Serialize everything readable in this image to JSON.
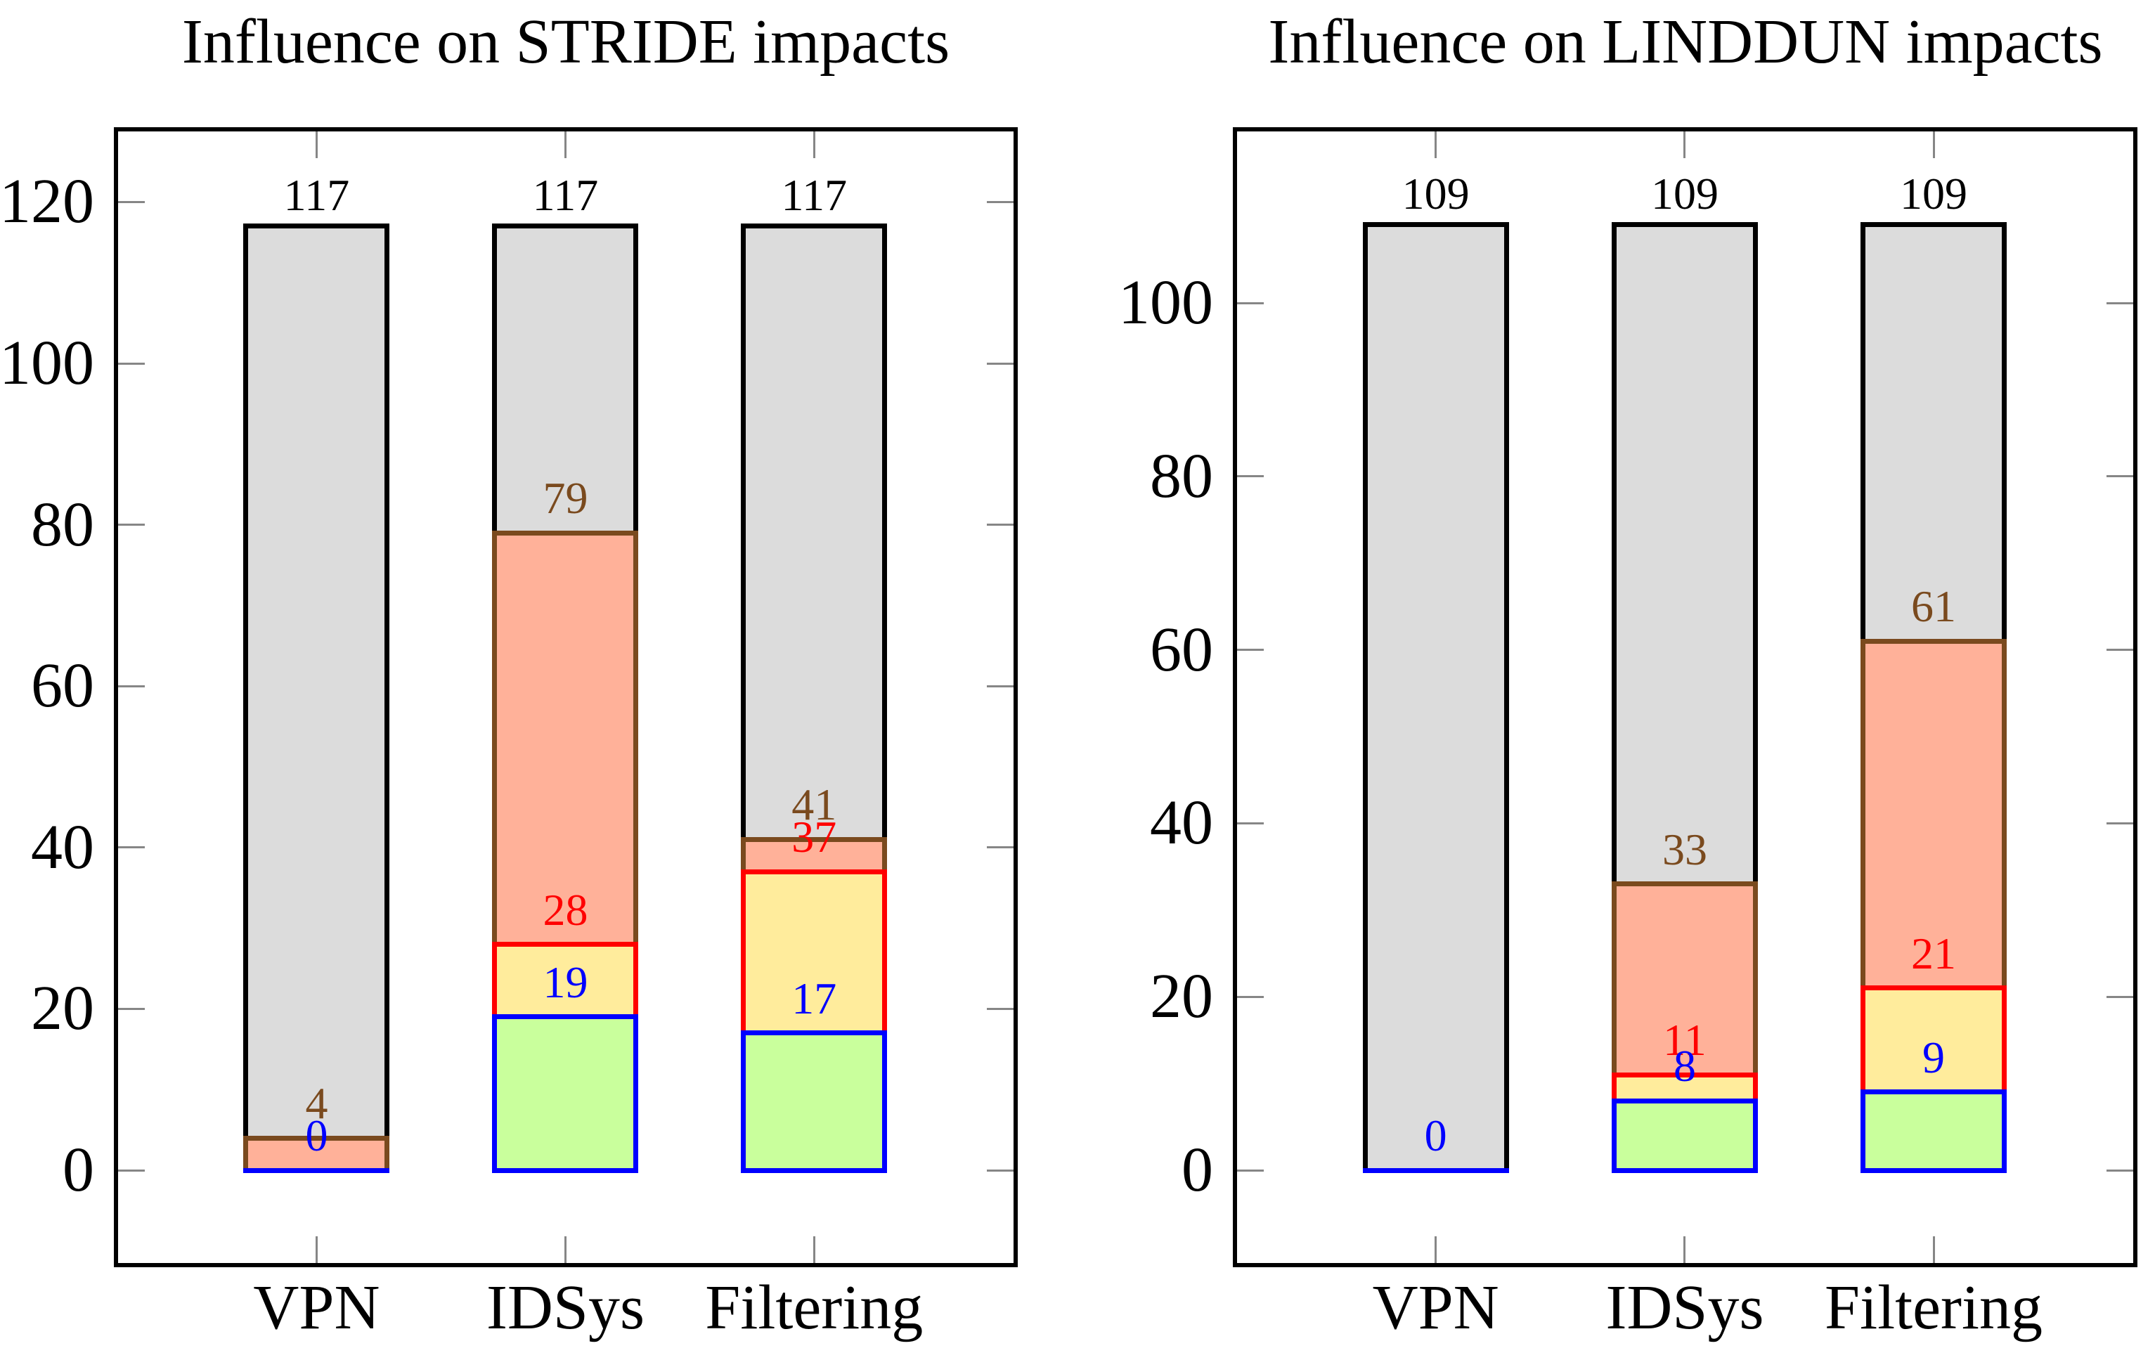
{
  "colors": {
    "green_fill": "#c9ff9c",
    "yellow_fill": "#ffec9c",
    "salmon_fill": "#ffb199",
    "gray_fill": "#dcdcdc",
    "blue": "#0000ff",
    "red": "#ff0000",
    "brown": "#7a4a1e",
    "black": "#000000",
    "tick_gray": "#868686"
  },
  "chart_data": [
    {
      "type": "bar",
      "stacked": true,
      "title": "Influence on STRIDE impacts",
      "xlabel": "",
      "ylabel": "",
      "categories": [
        "VPN",
        "IDSys",
        "Filtering"
      ],
      "y_ticks": [
        0,
        20,
        40,
        60,
        80,
        100,
        120
      ],
      "ylim": [
        -12,
        129
      ],
      "grid": false,
      "legend": "none",
      "series": [
        {
          "name": "gray-total",
          "fill": "gray_fill",
          "border": "black",
          "tops": [
            117,
            117,
            117
          ]
        },
        {
          "name": "brown-salmon",
          "fill": "salmon_fill",
          "border": "brown",
          "tops": [
            4,
            79,
            41
          ]
        },
        {
          "name": "red-yellow",
          "fill": "yellow_fill",
          "border": "red",
          "tops": [
            0,
            28,
            37
          ]
        },
        {
          "name": "blue-green",
          "fill": "green_fill",
          "border": "blue",
          "tops": [
            0,
            19,
            17
          ]
        }
      ],
      "value_labels": [
        {
          "bar": 0,
          "text": "117",
          "color": "black",
          "at": 117
        },
        {
          "bar": 0,
          "text": "4",
          "color": "brown",
          "at": 4
        },
        {
          "bar": 0,
          "text": "0",
          "color": "blue",
          "at": 0
        },
        {
          "bar": 1,
          "text": "117",
          "color": "black",
          "at": 117
        },
        {
          "bar": 1,
          "text": "79",
          "color": "brown",
          "at": 79
        },
        {
          "bar": 1,
          "text": "28",
          "color": "red",
          "at": 28
        },
        {
          "bar": 1,
          "text": "19",
          "color": "blue",
          "at": 19
        },
        {
          "bar": 2,
          "text": "117",
          "color": "black",
          "at": 117
        },
        {
          "bar": 2,
          "text": "41",
          "color": "brown",
          "at": 41
        },
        {
          "bar": 2,
          "text": "37",
          "color": "red",
          "at": 37
        },
        {
          "bar": 2,
          "text": "17",
          "color": "blue",
          "at": 17
        }
      ]
    },
    {
      "type": "bar",
      "stacked": true,
      "title": "Influence on LINDDUN impacts",
      "xlabel": "",
      "ylabel": "",
      "categories": [
        "VPN",
        "IDSys",
        "Filtering"
      ],
      "y_ticks": [
        0,
        20,
        40,
        60,
        80,
        100
      ],
      "ylim": [
        -11,
        120
      ],
      "grid": false,
      "legend": "none",
      "series": [
        {
          "name": "gray-total",
          "fill": "gray_fill",
          "border": "black",
          "tops": [
            109,
            109,
            109
          ]
        },
        {
          "name": "brown-salmon",
          "fill": "salmon_fill",
          "border": "brown",
          "tops": [
            0,
            33,
            61
          ]
        },
        {
          "name": "red-yellow",
          "fill": "yellow_fill",
          "border": "red",
          "tops": [
            0,
            11,
            21
          ]
        },
        {
          "name": "blue-green",
          "fill": "green_fill",
          "border": "blue",
          "tops": [
            0,
            8,
            9
          ]
        }
      ],
      "value_labels": [
        {
          "bar": 0,
          "text": "109",
          "color": "black",
          "at": 109
        },
        {
          "bar": 0,
          "text": "0",
          "color": "blue",
          "at": 0
        },
        {
          "bar": 1,
          "text": "109",
          "color": "black",
          "at": 109
        },
        {
          "bar": 1,
          "text": "33",
          "color": "brown",
          "at": 33
        },
        {
          "bar": 1,
          "text": "11",
          "color": "red",
          "at": 11
        },
        {
          "bar": 1,
          "text": "8",
          "color": "blue",
          "at": 8
        },
        {
          "bar": 2,
          "text": "109",
          "color": "black",
          "at": 109
        },
        {
          "bar": 2,
          "text": "61",
          "color": "brown",
          "at": 61
        },
        {
          "bar": 2,
          "text": "21",
          "color": "red",
          "at": 21
        },
        {
          "bar": 2,
          "text": "9",
          "color": "blue",
          "at": 9
        }
      ]
    }
  ]
}
